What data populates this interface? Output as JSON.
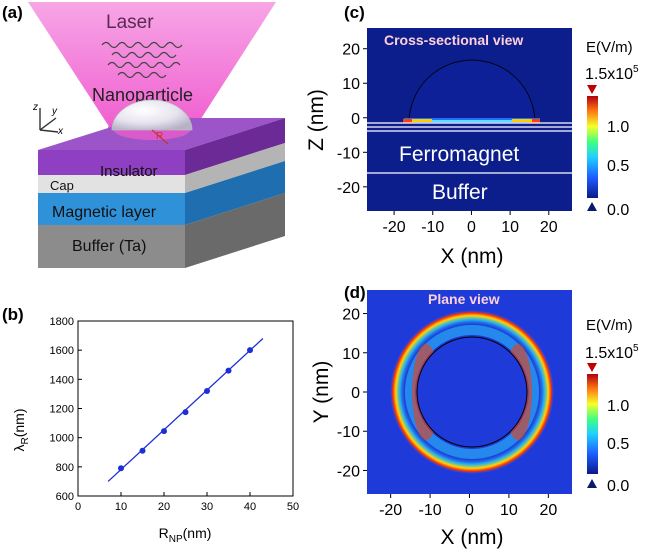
{
  "panels": {
    "a": {
      "tag": "(a)",
      "laser": "Laser",
      "nanoparticle": "Nanoparticle",
      "radius_mark": "R",
      "layers": [
        "Insulator",
        "Cap",
        "Magnetic layer",
        "Buffer (Ta)"
      ],
      "axes": {
        "z": "z",
        "y": "y",
        "x": "x"
      }
    },
    "b": {
      "tag": "(b)"
    },
    "c": {
      "tag": "(c)",
      "title": "Cross-sectional view",
      "layer_top": "Ferromagnet",
      "layer_bottom": "Buffer",
      "xlabel": "X (nm)",
      "ylabel": "Z (nm)",
      "xticks": [
        "-20",
        "-10",
        "0",
        "10",
        "20"
      ],
      "yticks": [
        "20",
        "10",
        "0",
        "-10",
        "-20"
      ],
      "colorbar": {
        "title": "E(V/m)",
        "max": "1.5x10",
        "max_exp": "5",
        "ticks": [
          "1.0",
          "0.5",
          "0.0"
        ]
      }
    },
    "d": {
      "tag": "(d)",
      "title": "Plane view",
      "xlabel": "X (nm)",
      "ylabel": "Y (nm)",
      "xticks": [
        "-20",
        "-10",
        "0",
        "10",
        "20"
      ],
      "yticks": [
        "20",
        "10",
        "0",
        "-10",
        "-20"
      ],
      "colorbar": {
        "title": "E(V/m)",
        "max": "1.5x10",
        "max_exp": "5",
        "ticks": [
          "1.0",
          "0.5",
          "0.0"
        ]
      }
    }
  },
  "chart_data": {
    "type": "scatter",
    "xlabel": "R",
    "xlabel_sub": "NP",
    "xlabel_unit": "(nm)",
    "ylabel": "λ",
    "ylabel_sub": "R",
    "ylabel_unit": "(nm)",
    "xlim": [
      0,
      50
    ],
    "ylim": [
      600,
      1800
    ],
    "xticks": [
      0,
      10,
      20,
      30,
      40,
      50
    ],
    "yticks": [
      600,
      800,
      1000,
      1200,
      1400,
      1600,
      1800
    ],
    "x": [
      10,
      15,
      20,
      25,
      30,
      35,
      40
    ],
    "y": [
      790,
      910,
      1045,
      1175,
      1320,
      1460,
      1600
    ],
    "fit_line": {
      "x": [
        7,
        43
      ],
      "y": [
        700,
        1680
      ]
    },
    "color": "#1e2fd6"
  }
}
